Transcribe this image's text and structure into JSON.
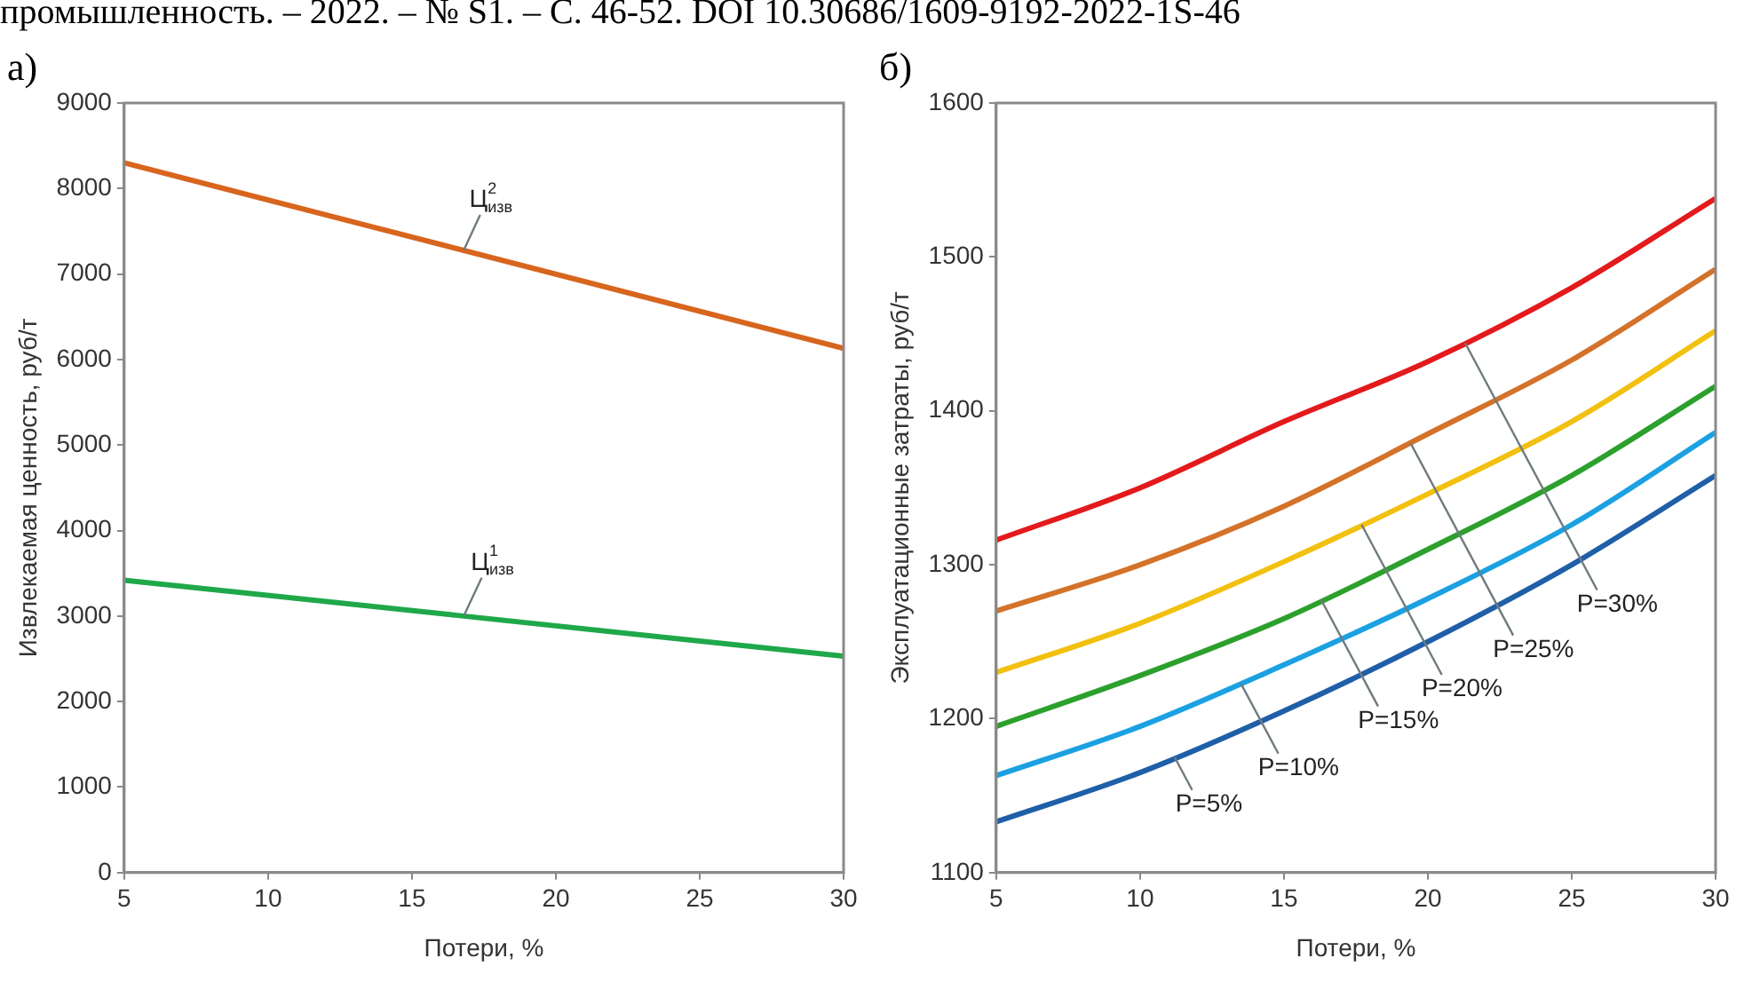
{
  "chart_data": [
    {
      "type": "line",
      "title": "а)",
      "xlabel": "Потери, %",
      "ylabel": "Извлекаемая ценность, руб/т",
      "x": [
        5,
        30
      ],
      "xlim": [
        5,
        30
      ],
      "xticks": [
        5,
        10,
        15,
        20,
        25,
        30
      ],
      "ylim": [
        0,
        9000
      ],
      "yticks": [
        0,
        1000,
        2000,
        3000,
        4000,
        5000,
        6000,
        7000,
        8000,
        9000
      ],
      "series": [
        {
          "color": "#d8651e",
          "values": [
            8300,
            6130
          ]
        },
        {
          "color": "#1fa84a",
          "values": [
            3420,
            2530
          ]
        }
      ],
      "annotations": [
        "промышленность. – 2022. – № S1. – С. 46-52. DOI 10.30686/1609-9192-2022-1S-46",
        {
          "text": "Ц$^{2}$$_{изв}$",
          "x": 16.8,
          "y": 7280
        },
        {
          "text": "Ц$^{1}$$_{изв}$",
          "x": 16.8,
          "y": 3000
        }
      ],
      "marker": "none",
      "line_style": "solid"
    },
    {
      "type": "line",
      "title": "б)",
      "xlabel": "Потери, %",
      "ylabel": "Эксплуатационные затраты, руб/т",
      "x": [
        5,
        10,
        15,
        20,
        25,
        30
      ],
      "xlim": [
        5,
        30
      ],
      "xticks": [
        5,
        10,
        15,
        20,
        25,
        30
      ],
      "ylim": [
        1100,
        1600
      ],
      "yticks": [
        1100,
        1200,
        1300,
        1400,
        1500,
        1600
      ],
      "series": [
        {
          "color": "#1f5fa8",
          "values": [
            1133,
            1165,
            1205,
            1250,
            1300,
            1358
          ]
        },
        {
          "color": "#1ba1e2",
          "values": [
            1163,
            1195,
            1235,
            1278,
            1326,
            1386
          ]
        },
        {
          "color": "#2ca02c",
          "values": [
            1195,
            1228,
            1265,
            1310,
            1358,
            1416
          ]
        },
        {
          "color": "#f2c00f",
          "values": [
            1230,
            1262,
            1302,
            1346,
            1393,
            1452
          ]
        },
        {
          "color": "#d4722a",
          "values": [
            1270,
            1300,
            1338,
            1385,
            1433,
            1492
          ]
        },
        {
          "color": "#e31a1c",
          "values": [
            1316,
            1350,
            1393,
            1432,
            1480,
            1538
          ]
        }
      ],
      "annotations": [
        {
          "text": "P=5%",
          "x": 11.2,
          "y": 1175
        },
        {
          "text": "P=10%",
          "x": 13.5,
          "y": 1223
        },
        {
          "text": "P=15%",
          "x": 16.3,
          "y": 1277
        },
        {
          "text": "P=20%",
          "x": 17.7,
          "y": 1326
        },
        {
          "text": "P=25%",
          "x": 19.4,
          "y": 1379
        },
        {
          "text": "P=30%",
          "x": 21.3,
          "y": 1444
        }
      ],
      "marker": "none",
      "line_style": "solid"
    }
  ]
}
